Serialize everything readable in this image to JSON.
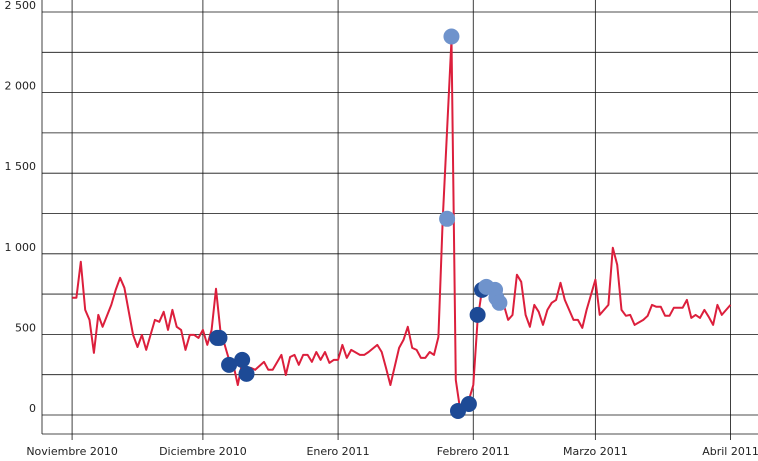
{
  "chart_data": {
    "type": "line",
    "xlim": [
      -6.9,
      157.3
    ],
    "ylim": [
      -118,
      2500
    ],
    "xticks": [
      {
        "value": 0,
        "label": "Noviembre 2010"
      },
      {
        "value": 30,
        "label": "Diciembre 2010"
      },
      {
        "value": 61,
        "label": "Enero 2011"
      },
      {
        "value": 92,
        "label": "Febrero 2011"
      },
      {
        "value": 120,
        "label": "Marzo 2011"
      },
      {
        "value": 151,
        "label": "Abril 2011"
      }
    ],
    "yticks": [
      {
        "value": 0,
        "label": "0"
      },
      {
        "value": 500,
        "label": "500"
      },
      {
        "value": 1000,
        "label": "1 000"
      },
      {
        "value": 1500,
        "label": "1 500"
      },
      {
        "value": 2000,
        "label": "2 000"
      },
      {
        "value": 2500,
        "label": "2 500"
      }
    ],
    "minor_yticks": [
      250,
      750,
      1250,
      1750,
      2250
    ],
    "grid": true,
    "series": [
      {
        "color": "#dc1f3c",
        "marker": false,
        "x": [
          0,
          1,
          2,
          3,
          4,
          5,
          6,
          7,
          9,
          10,
          11,
          12,
          13,
          14,
          15,
          16,
          17,
          19,
          20,
          21,
          22,
          23,
          24,
          25,
          26,
          27,
          28,
          29,
          30,
          31,
          32,
          33,
          34,
          35,
          36,
          37,
          38,
          39,
          40,
          41,
          42,
          44,
          45,
          46,
          48,
          49,
          50,
          51,
          52,
          53,
          54,
          55,
          56,
          57,
          58,
          59,
          60,
          61,
          62,
          63,
          64,
          66,
          67,
          68,
          70,
          71,
          72,
          73,
          75,
          76,
          77,
          78,
          79,
          80,
          81,
          82,
          83,
          84,
          85,
          86,
          87,
          88,
          89,
          90,
          91,
          92,
          93,
          94,
          95,
          96,
          97,
          98,
          99,
          100,
          101,
          102,
          103,
          104,
          105,
          106,
          107,
          108,
          109,
          110,
          111,
          112,
          113,
          115,
          116,
          117,
          118,
          120,
          121,
          123,
          124,
          125,
          126,
          127,
          128,
          129,
          131,
          132,
          133,
          134,
          135,
          136,
          137,
          138,
          140,
          141,
          142,
          143,
          144,
          145,
          146,
          147,
          148,
          149,
          151
        ],
        "values": [
          727,
          727,
          950,
          652,
          590,
          385,
          621,
          547,
          683,
          776,
          851,
          789,
          640,
          497,
          422,
          497,
          404,
          590,
          578,
          640,
          528,
          652,
          547,
          528,
          404,
          497,
          497,
          478,
          528,
          435,
          528,
          783,
          528,
          435,
          342,
          311,
          186,
          323,
          292,
          292,
          280,
          329,
          280,
          280,
          373,
          248,
          360,
          373,
          311,
          373,
          373,
          329,
          391,
          342,
          391,
          323,
          342,
          342,
          435,
          354,
          404,
          373,
          373,
          391,
          435,
          391,
          292,
          186,
          416,
          466,
          547,
          416,
          404,
          354,
          354,
          391,
          373,
          484,
          1211,
          1770,
          2329,
          217,
          31,
          93,
          93,
          186,
          590,
          776,
          807,
          745,
          807,
          745,
          683,
          590,
          620,
          870,
          826,
          621,
          547,
          683,
          640,
          559,
          652,
          696,
          714,
          820,
          714,
          590,
          590,
          540,
          652,
          839,
          621,
          683,
          1037,
          932,
          652,
          615,
          621,
          559,
          590,
          615,
          683,
          671,
          671,
          615,
          615,
          665,
          665,
          714,
          602,
          621,
          602,
          652,
          609,
          559,
          683,
          621,
          683
        ]
      },
      {
        "color": "#1d4a96",
        "marker": true,
        "x": [
          33.3,
          33.8,
          36,
          39,
          40,
          88.5,
          91,
          93,
          94
        ],
        "values": [
          478,
          478,
          311,
          342,
          255,
          25,
          68,
          621,
          776
        ]
      },
      {
        "color": "#6f93cc",
        "marker": true,
        "x": [
          86,
          87,
          95,
          97,
          97.3,
          98
        ],
        "values": [
          1217,
          2348,
          795,
          776,
          727,
          696
        ]
      }
    ]
  }
}
